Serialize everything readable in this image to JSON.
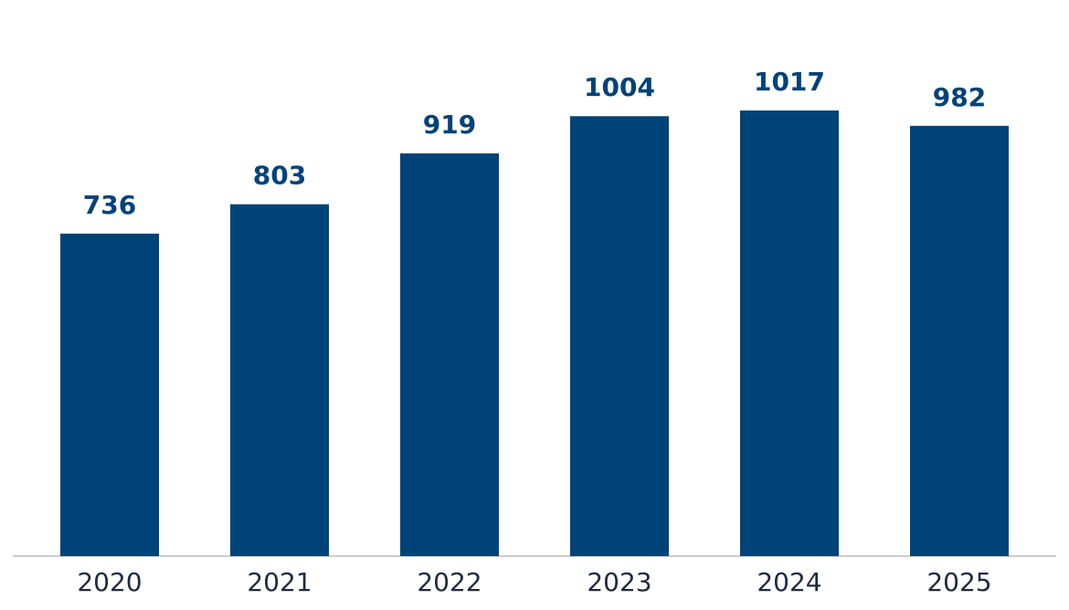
{
  "chart_data": {
    "type": "bar",
    "categories": [
      "2020",
      "2021",
      "2022",
      "2023",
      "2024",
      "2025"
    ],
    "values": [
      736,
      803,
      919,
      1004,
      1017,
      982
    ],
    "color": "#004379"
  }
}
